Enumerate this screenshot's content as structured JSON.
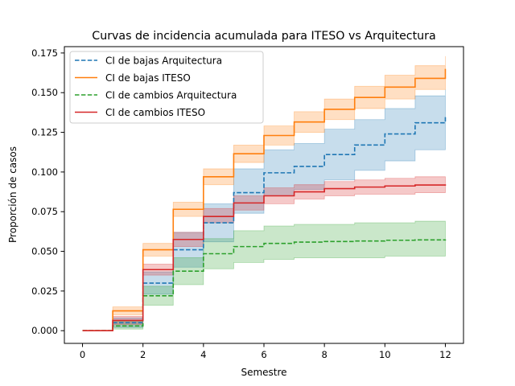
{
  "chart_data": {
    "type": "line",
    "step": "post",
    "title": "Curvas de incidencia acumulada para ITESO vs Arquitectura",
    "xlabel": "Semestre",
    "ylabel": "Proporción de casos",
    "xlim": [
      -0.6,
      12.6
    ],
    "ylim": [
      -0.008,
      0.179
    ],
    "xticks": [
      0,
      2,
      4,
      6,
      8,
      10,
      12
    ],
    "yticks": [
      0.0,
      0.025,
      0.05,
      0.075,
      0.1,
      0.125,
      0.15,
      0.175
    ],
    "ytick_labels": [
      "0.000",
      "0.025",
      "0.050",
      "0.075",
      "0.100",
      "0.125",
      "0.150",
      "0.175"
    ],
    "legend_position": "top-left",
    "x": [
      0,
      1,
      2,
      3,
      4,
      5,
      6,
      7,
      8,
      9,
      10,
      11,
      12
    ],
    "series": [
      {
        "name": "CI de bajas Arquitectura",
        "color": "#1f77b4",
        "dash": true,
        "values": [
          0.0,
          0.005,
          0.03,
          0.051,
          0.068,
          0.087,
          0.0995,
          0.1035,
          0.111,
          0.117,
          0.124,
          0.131,
          0.135
        ],
        "ci_lower": [
          0.0,
          0.002,
          0.023,
          0.04,
          0.056,
          0.074,
          0.085,
          0.089,
          0.095,
          0.101,
          0.107,
          0.114,
          0.118
        ],
        "ci_upper": [
          0.0,
          0.008,
          0.037,
          0.062,
          0.08,
          0.102,
          0.114,
          0.118,
          0.127,
          0.133,
          0.14,
          0.148,
          0.152
        ]
      },
      {
        "name": "CI de bajas ITESO",
        "color": "#ff7f0e",
        "dash": false,
        "values": [
          0.0,
          0.0125,
          0.051,
          0.0765,
          0.097,
          0.1115,
          0.123,
          0.1315,
          0.1395,
          0.147,
          0.1535,
          0.159,
          0.165
        ],
        "ci_lower": [
          0.0,
          0.01,
          0.047,
          0.072,
          0.092,
          0.106,
          0.117,
          0.125,
          0.133,
          0.14,
          0.146,
          0.152,
          0.157
        ],
        "ci_upper": [
          0.0,
          0.015,
          0.055,
          0.081,
          0.102,
          0.117,
          0.129,
          0.138,
          0.146,
          0.154,
          0.161,
          0.167,
          0.173
        ]
      },
      {
        "name": "CI de cambios Arquitectura",
        "color": "#2ca02c",
        "dash": true,
        "values": [
          0.0,
          0.003,
          0.022,
          0.0375,
          0.0485,
          0.053,
          0.055,
          0.0558,
          0.0562,
          0.0565,
          0.057,
          0.0572,
          0.0575
        ],
        "ci_lower": [
          0.0,
          0.001,
          0.016,
          0.029,
          0.039,
          0.043,
          0.045,
          0.046,
          0.046,
          0.046,
          0.047,
          0.047,
          0.047
        ],
        "ci_upper": [
          0.0,
          0.006,
          0.028,
          0.046,
          0.058,
          0.063,
          0.066,
          0.067,
          0.067,
          0.068,
          0.068,
          0.069,
          0.069
        ]
      },
      {
        "name": "CI de cambios ITESO",
        "color": "#d62728",
        "dash": false,
        "values": [
          0.0,
          0.0065,
          0.0385,
          0.0575,
          0.072,
          0.0805,
          0.085,
          0.0875,
          0.0895,
          0.0905,
          0.0912,
          0.0918,
          0.0922
        ],
        "ci_lower": [
          0.0,
          0.004,
          0.035,
          0.053,
          0.068,
          0.076,
          0.08,
          0.083,
          0.085,
          0.086,
          0.086,
          0.087,
          0.087
        ],
        "ci_upper": [
          0.0,
          0.009,
          0.042,
          0.062,
          0.077,
          0.085,
          0.09,
          0.092,
          0.094,
          0.095,
          0.096,
          0.097,
          0.097
        ]
      }
    ]
  }
}
